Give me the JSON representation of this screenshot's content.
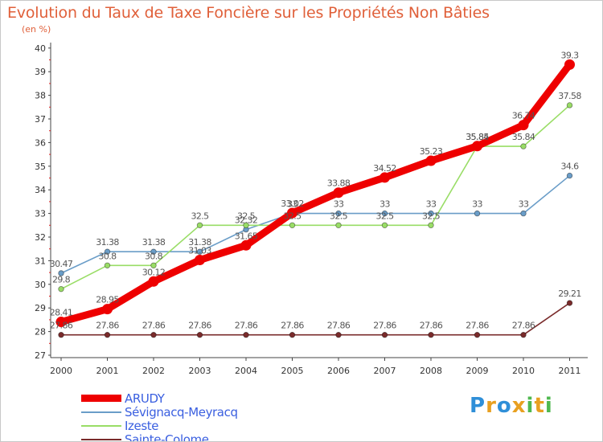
{
  "header": {
    "title": "Evolution du Taux de Taxe Foncière sur les Propriétés Non Bâties",
    "subtitle": "(en %)"
  },
  "chart_data": {
    "type": "line",
    "title": "Evolution du Taux de Taxe Foncière sur les Propriétés Non Bâties",
    "ylabel": "(en %)",
    "xlabel": "",
    "categories": [
      "2000",
      "2001",
      "2002",
      "2003",
      "2004",
      "2005",
      "2006",
      "2007",
      "2008",
      "2009",
      "2010",
      "2011"
    ],
    "y_ticks": [
      27,
      28,
      29,
      30,
      31,
      32,
      33,
      34,
      35,
      36,
      37,
      38,
      39,
      40
    ],
    "ylim": [
      27,
      40
    ],
    "grid": false,
    "legend_position": "bottom-left",
    "series": [
      {
        "name": "ARUDY",
        "color": "#ee0000",
        "values": [
          28.41,
          28.95,
          30.12,
          31.03,
          31.65,
          33.02,
          33.88,
          34.52,
          35.23,
          35.85,
          36.74,
          39.3
        ],
        "labels": [
          "28.41",
          "28.95",
          "30.12",
          "31.03",
          "31.65",
          "33.02",
          "33.88",
          "34.52",
          "35.23",
          "35.85",
          "36.74",
          "39.3"
        ]
      },
      {
        "name": "Sévignacq-Meyracq",
        "color": "#6a9dc8",
        "values": [
          30.47,
          31.38,
          31.38,
          31.38,
          32.32,
          33,
          33,
          33,
          33,
          33,
          33,
          34.6
        ],
        "labels": [
          "30.47",
          "31.38",
          "31.38",
          "31.38",
          "32.32",
          "33",
          "33",
          "33",
          "33",
          "33",
          "33",
          "34.6"
        ]
      },
      {
        "name": "Izeste",
        "color": "#99dd66",
        "values": [
          29.8,
          30.8,
          30.8,
          32.5,
          32.5,
          32.5,
          32.5,
          32.5,
          32.5,
          35.84,
          35.84,
          37.58
        ],
        "labels": [
          "29.8",
          "30.8",
          "30.8",
          "32.5",
          "32.5",
          "32.5",
          "32.5",
          "32.5",
          "32.5",
          "35.84",
          "35.84",
          "37.58"
        ]
      },
      {
        "name": "Sainte-Colome",
        "color": "#7a2b2b",
        "values": [
          27.86,
          27.86,
          27.86,
          27.86,
          27.86,
          27.86,
          27.86,
          27.86,
          27.86,
          27.86,
          27.86,
          29.21
        ],
        "labels": [
          "27.86",
          "27.86",
          "27.86",
          "27.86",
          "27.86",
          "27.86",
          "27.86",
          "27.86",
          "27.86",
          "27.86",
          "27.86",
          "29.21"
        ]
      }
    ]
  },
  "logo": {
    "letters": [
      "P",
      "r",
      "o",
      "x",
      "i",
      "t",
      "i"
    ],
    "colors": [
      "#2f8fd8",
      "#e8a020",
      "#2f8fd8",
      "#e8a020",
      "#4fb84f",
      "#e8a020",
      "#4fb84f"
    ]
  }
}
